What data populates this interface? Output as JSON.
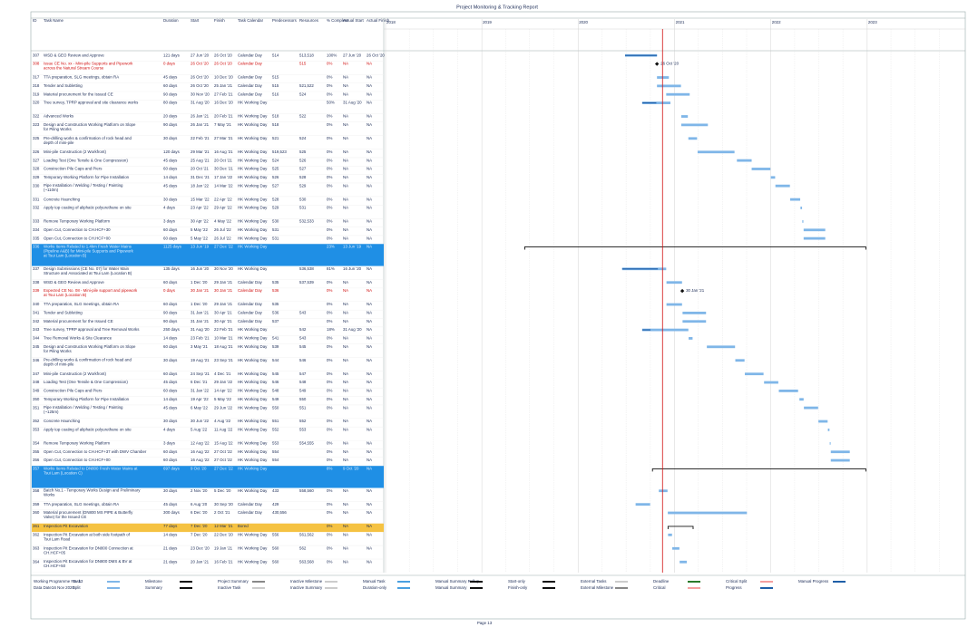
{
  "header": {
    "title": "Project Monitoring & Tracking Report"
  },
  "columns": [
    "ID",
    "Task Name",
    "Duration",
    "Start",
    "Finish",
    "Task Calendar",
    "Predecessors",
    "Resources",
    "% Complete",
    "Actual Start",
    "Actual Finish"
  ],
  "timeline": {
    "years": [
      "2018",
      "2019",
      "2020",
      "2021",
      "2022",
      "2023"
    ]
  },
  "rows": [
    {
      "id": "307",
      "name": "WSD & GEO Review and Approve",
      "duration": "121 days",
      "start": "27 Jun '20",
      "finish": "26 Oct '20",
      "calendar": "Calendar Day",
      "pred": "514",
      "res": "513,518",
      "pct": "100%",
      "astart": "27 Jun '20",
      "afinish": "26 Oct '20"
    },
    {
      "id": "308",
      "name": "Issue CE No. xx - Mini-pile Supports and Pipework across the Natural Stream Course",
      "duration": "0 days",
      "start": "26 Oct '20",
      "finish": "26 Oct '20",
      "calendar": "Calendar Day",
      "pred": "",
      "res": "515",
      "pct": "0%",
      "astart": "NA",
      "afinish": "NA",
      "text_color": "#d01010",
      "milestone": true
    },
    {
      "id": "317",
      "name": "TTA preparation, SLG meetings, obtain RA",
      "duration": "45 days",
      "start": "26 Oct '20",
      "finish": "10 Dec '20",
      "calendar": "Calendar Day",
      "pred": "515",
      "res": "",
      "pct": "0%",
      "astart": "NA",
      "afinish": "NA"
    },
    {
      "id": "318",
      "name": "Tender and Subletting",
      "duration": "60 days",
      "start": "26 Oct '20",
      "finish": "25 Jan '21",
      "calendar": "Calendar Day",
      "pred": "515",
      "res": "521,522",
      "pct": "0%",
      "astart": "NA",
      "afinish": "NA"
    },
    {
      "id": "319",
      "name": "Material procurement for the Issued CE",
      "duration": "90 days",
      "start": "30 Nov '20",
      "finish": "27 Feb '21",
      "calendar": "Calendar Day",
      "pred": "516",
      "res": "524",
      "pct": "0%",
      "astart": "NA",
      "afinish": "NA"
    },
    {
      "id": "320",
      "name": "Tree survey, TPRP approval and site clearance works",
      "duration": "80 days",
      "start": "31 Aug '20",
      "finish": "16 Dec '20",
      "calendar": "HK Working Day",
      "pred": "",
      "res": "",
      "pct": "50%",
      "astart": "31 Aug '20",
      "afinish": "NA"
    },
    {
      "id": "322",
      "name": "Advanced Works",
      "duration": "20 days",
      "start": "26 Jan '21",
      "finish": "20 Feb '21",
      "calendar": "HK Working Day",
      "pred": "518",
      "res": "522",
      "pct": "0%",
      "astart": "NA",
      "afinish": "NA"
    },
    {
      "id": "323",
      "name": "Design and Construction Working Platform on Slope for Piling Works",
      "duration": "90 days",
      "start": "26 Jan '21",
      "finish": "7 May '21",
      "calendar": "HK Working Day",
      "pred": "518",
      "res": "",
      "pct": "0%",
      "astart": "NA",
      "afinish": "NA"
    },
    {
      "id": "325",
      "name": "Pre-drilling works & confirmation of rock head and depth of mini-pile",
      "duration": "30 days",
      "start": "22 Feb '21",
      "finish": "27 Mar '21",
      "calendar": "HK Working Day",
      "pred": "521",
      "res": "524",
      "pct": "0%",
      "astart": "NA",
      "afinish": "NA"
    },
    {
      "id": "326",
      "name": "Mini-pile Construction (2 Workfront)",
      "duration": "120 days",
      "start": "29 Mar '21",
      "finish": "16 Aug '21",
      "calendar": "HK Working Day",
      "pred": "519,523",
      "res": "525",
      "pct": "0%",
      "astart": "NA",
      "afinish": "NA"
    },
    {
      "id": "327",
      "name": "Loading Test (One Tensile & One Compression)",
      "duration": "45 days",
      "start": "25 Aug '21",
      "finish": "20 Oct '21",
      "calendar": "HK Working Day",
      "pred": "524",
      "res": "526",
      "pct": "0%",
      "astart": "NA",
      "afinish": "NA"
    },
    {
      "id": "328",
      "name": "Construction Pile Caps and Piers",
      "duration": "60 days",
      "start": "20 Oct '21",
      "finish": "30 Dec '21",
      "calendar": "HK Working Day",
      "pred": "525",
      "res": "527",
      "pct": "0%",
      "astart": "NA",
      "afinish": "NA"
    },
    {
      "id": "329",
      "name": "Temporary Working Platform for Pipe Installation",
      "duration": "14 days",
      "start": "31 Dec '21",
      "finish": "17 Jan '22",
      "calendar": "HK Working Day",
      "pred": "526",
      "res": "528",
      "pct": "0%",
      "astart": "NA",
      "afinish": "NA"
    },
    {
      "id": "330",
      "name": "Pipe Installation / Welding / Testing / Painting (~110m)",
      "duration": "45 days",
      "start": "18 Jan '22",
      "finish": "14 Mar '22",
      "calendar": "HK Working Day",
      "pred": "527",
      "res": "529",
      "pct": "0%",
      "astart": "NA",
      "afinish": "NA"
    },
    {
      "id": "331",
      "name": "Concrete Haunching",
      "duration": "30 days",
      "start": "15 Mar '22",
      "finish": "22 Apr '22",
      "calendar": "HK Working Day",
      "pred": "528",
      "res": "530",
      "pct": "0%",
      "astart": "NA",
      "afinish": "NA"
    },
    {
      "id": "332",
      "name": "Apply top coating of aliphatic polyurethane on site",
      "duration": "4 days",
      "start": "23 Apr '22",
      "finish": "29 Apr '22",
      "calendar": "HK Working Day",
      "pred": "529",
      "res": "531",
      "pct": "0%",
      "astart": "NA",
      "afinish": "NA"
    },
    {
      "id": "333",
      "name": "Remove Temporary Working Platform",
      "duration": "3 days",
      "start": "30 Apr '22",
      "finish": "4 May '22",
      "calendar": "HK Working Day",
      "pred": "530",
      "res": "532,533",
      "pct": "0%",
      "astart": "NA",
      "afinish": "NA"
    },
    {
      "id": "334",
      "name": "Open Cut, Connection to CH.HCF+30",
      "duration": "60 days",
      "start": "5 May '22",
      "finish": "26 Jul '22",
      "calendar": "HK Working Day",
      "pred": "531",
      "res": "",
      "pct": "0%",
      "astart": "NA",
      "afinish": "NA"
    },
    {
      "id": "335",
      "name": "Open Cut, Connection to CH.HCF+00",
      "duration": "60 days",
      "start": "5 May '22",
      "finish": "26 Jul '22",
      "calendar": "HK Working Day",
      "pred": "531",
      "res": "",
      "pct": "0%",
      "astart": "NA",
      "afinish": "NA"
    },
    {
      "id": "336",
      "name": "Works Items Related to 1.4km Fresh Water Mains (Pipeline A&B) for Mini-pile Supports and Pipework at Tsui Lam (Location B)",
      "duration": "1125 days",
      "start": "13 Jun '19",
      "finish": "27 Dec '22",
      "calendar": "HK Working Day",
      "pred": "",
      "res": "",
      "pct": "23%",
      "astart": "13 Jun '19",
      "afinish": "NA",
      "highlight": "#1f8fe5",
      "summary": true
    },
    {
      "id": "337",
      "name": "Design Submissions (CE No. 07) for Water Main Structure and Associated at Tsui Lam (Location B)",
      "duration": "135 days",
      "start": "16 Jun '20",
      "finish": "30 Nov '20",
      "calendar": "HK Working Day",
      "pred": "",
      "res": "536,538",
      "pct": "81%",
      "astart": "16 Jun '20",
      "afinish": "NA"
    },
    {
      "id": "338",
      "name": "WSD & GEO Review and Approve",
      "duration": "60 days",
      "start": "1 Dec '20",
      "finish": "29 Jan '21",
      "calendar": "Calendar Day",
      "pred": "535",
      "res": "537,539",
      "pct": "0%",
      "astart": "NA",
      "afinish": "NA"
    },
    {
      "id": "339",
      "name": "Expected CE No. 08 - Mini-pile support and pipework at Tsui Lam (Location B)",
      "duration": "0 days",
      "start": "30 Jan '21",
      "finish": "30 Jan '21",
      "calendar": "Calendar Day",
      "pred": "536",
      "res": "",
      "pct": "0%",
      "astart": "NA",
      "afinish": "NA",
      "text_color": "#d01010",
      "milestone": true
    },
    {
      "id": "340",
      "name": "TTA preparation, SLG meetings, obtain RA",
      "duration": "60 days",
      "start": "1 Dec '20",
      "finish": "29 Jan '21",
      "calendar": "Calendar Day",
      "pred": "535",
      "res": "",
      "pct": "0%",
      "astart": "NA",
      "afinish": "NA"
    },
    {
      "id": "341",
      "name": "Tender and Subletting",
      "duration": "90 days",
      "start": "31 Jan '21",
      "finish": "30 Apr '21",
      "calendar": "Calendar Day",
      "pred": "536",
      "res": "543",
      "pct": "0%",
      "astart": "NA",
      "afinish": "NA"
    },
    {
      "id": "342",
      "name": "Material procurement for the Issued CE",
      "duration": "90 days",
      "start": "31 Jan '21",
      "finish": "30 Apr '21",
      "calendar": "Calendar Day",
      "pred": "537",
      "res": "",
      "pct": "0%",
      "astart": "NA",
      "afinish": "NA"
    },
    {
      "id": "343",
      "name": "Tree survey, TPRP approval and Tree Removal Works",
      "duration": "250 days",
      "start": "31 Aug '20",
      "finish": "22 Feb '21",
      "calendar": "HK Working Day",
      "pred": "",
      "res": "542",
      "pct": "18%",
      "astart": "31 Aug '20",
      "afinish": "NA"
    },
    {
      "id": "344",
      "name": "Tree Removal Works & Site Clearance",
      "duration": "14 days",
      "start": "23 Feb '21",
      "finish": "10 Mar '21",
      "calendar": "HK Working Day",
      "pred": "541",
      "res": "543",
      "pct": "0%",
      "astart": "NA",
      "afinish": "NA"
    },
    {
      "id": "345",
      "name": "Design and Construction Working Platform on Slope for Piling Works",
      "duration": "60 days",
      "start": "3 May '21",
      "finish": "18 Aug '21",
      "calendar": "HK Working Day",
      "pred": "539",
      "res": "545",
      "pct": "0%",
      "astart": "NA",
      "afinish": "NA"
    },
    {
      "id": "346",
      "name": "Pre-drilling works & confirmation of rock head and depth of mini-pile",
      "duration": "30 days",
      "start": "19 Aug '21",
      "finish": "23 Sep '21",
      "calendar": "HK Working Day",
      "pred": "544",
      "res": "546",
      "pct": "0%",
      "astart": "NA",
      "afinish": "NA"
    },
    {
      "id": "347",
      "name": "Mini-pile Construction (2 Workfront)",
      "duration": "60 days",
      "start": "24 Sep '21",
      "finish": "4 Dec '21",
      "calendar": "HK Working Day",
      "pred": "545",
      "res": "547",
      "pct": "0%",
      "astart": "NA",
      "afinish": "NA"
    },
    {
      "id": "348",
      "name": "Loading Test (One Tensile & One Compression)",
      "duration": "45 days",
      "start": "6 Dec '21",
      "finish": "29 Jan '22",
      "calendar": "HK Working Day",
      "pred": "546",
      "res": "548",
      "pct": "0%",
      "astart": "NA",
      "afinish": "NA"
    },
    {
      "id": "349",
      "name": "Construction Pile Caps and Piers",
      "duration": "60 days",
      "start": "31 Jan '22",
      "finish": "14 Apr '22",
      "calendar": "HK Working Day",
      "pred": "548",
      "res": "549",
      "pct": "0%",
      "astart": "NA",
      "afinish": "NA"
    },
    {
      "id": "350",
      "name": "Temporary Working Platform for Pipe Installation",
      "duration": "14 days",
      "start": "19 Apr '22",
      "finish": "5 May '22",
      "calendar": "HK Working Day",
      "pred": "549",
      "res": "550",
      "pct": "0%",
      "astart": "NA",
      "afinish": "NA"
    },
    {
      "id": "351",
      "name": "Pipe Installation / Welding / Testing / Painting (~125m)",
      "duration": "45 days",
      "start": "6 May '22",
      "finish": "29 Jun '22",
      "calendar": "HK Working Day",
      "pred": "550",
      "res": "551",
      "pct": "0%",
      "astart": "NA",
      "afinish": "NA"
    },
    {
      "id": "352",
      "name": "Concrete Haunching",
      "duration": "30 days",
      "start": "30 Jun '22",
      "finish": "4 Aug '22",
      "calendar": "HK Working Day",
      "pred": "551",
      "res": "552",
      "pct": "0%",
      "astart": "NA",
      "afinish": "NA"
    },
    {
      "id": "353",
      "name": "Apply top coating of aliphatic polyurethane on site",
      "duration": "4 days",
      "start": "5 Aug '22",
      "finish": "11 Aug '22",
      "calendar": "HK Working Day",
      "pred": "552",
      "res": "553",
      "pct": "0%",
      "astart": "NA",
      "afinish": "NA"
    },
    {
      "id": "354",
      "name": "Remove Temporary Working Platform",
      "duration": "3 days",
      "start": "12 Aug '22",
      "finish": "15 Aug '22",
      "calendar": "HK Working Day",
      "pred": "553",
      "res": "554,555",
      "pct": "0%",
      "astart": "NA",
      "afinish": "NA"
    },
    {
      "id": "355",
      "name": "Open Cut, Connection to CH.HCF+37 with DWV Chamber",
      "duration": "60 days",
      "start": "16 Aug '22",
      "finish": "27 Oct '22",
      "calendar": "HK Working Day",
      "pred": "554",
      "res": "",
      "pct": "0%",
      "astart": "NA",
      "afinish": "NA"
    },
    {
      "id": "356",
      "name": "Open Cut, Connection to CH.HCF+00",
      "duration": "60 days",
      "start": "16 Aug '22",
      "finish": "27 Oct '22",
      "calendar": "HK Working Day",
      "pred": "554",
      "res": "",
      "pct": "0%",
      "astart": "NA",
      "afinish": "NA"
    },
    {
      "id": "357",
      "name": "Works Items Related to DN800 Fresh Water Mains at Tsui Lam (Location C)",
      "duration": "697 days",
      "start": "9 Oct '20",
      "finish": "27 Dec '22",
      "calendar": "HK Working Day",
      "pred": "",
      "res": "",
      "pct": "8%",
      "astart": "9 Oct '20",
      "afinish": "NA",
      "highlight": "#1f8fe5",
      "summary": true
    },
    {
      "id": "358",
      "name": "Batch No.1 - Temporary Works Design and Preliminary Works",
      "duration": "30 days",
      "start": "2 Nov '20",
      "finish": "5 Dec '20",
      "calendar": "HK Working Day",
      "pred": "433",
      "res": "558,560",
      "pct": "0%",
      "astart": "NA",
      "afinish": "NA"
    },
    {
      "id": "359",
      "name": "TTA preparation, SLG meetings, obtain RA",
      "duration": "45 days",
      "start": "6 Aug '20",
      "finish": "30 Sep '20",
      "calendar": "Calendar Day",
      "pred": "429",
      "res": "",
      "pct": "0%",
      "astart": "NA",
      "afinish": "NA"
    },
    {
      "id": "360",
      "name": "Material procurement (DN800 MS PIPE & Butterfly Valve) for the Issued CE",
      "duration": "300 days",
      "start": "6 Dec '20",
      "finish": "2 Oct '21",
      "calendar": "Calendar Day",
      "pred": "430,556",
      "res": "",
      "pct": "0%",
      "astart": "NA",
      "afinish": "NA"
    },
    {
      "id": "361",
      "name": "Inspection Pit Excavation",
      "duration": "77 days",
      "start": "7 Dec '20",
      "finish": "12 Mar '21",
      "calendar": "Bored",
      "pred": "",
      "res": "",
      "pct": "0%",
      "astart": "NA",
      "afinish": "NA",
      "highlight": "#f5c242",
      "summary": true
    },
    {
      "id": "362",
      "name": "Inspection Pit Excavation at both side footpath of Tsui Lam Road",
      "duration": "14 days",
      "start": "7 Dec '20",
      "finish": "22 Dec '20",
      "calendar": "HK Working Day",
      "pred": "556",
      "res": "561,562",
      "pct": "0%",
      "astart": "NA",
      "afinish": "NA"
    },
    {
      "id": "363",
      "name": "Inspection Pit Excavation for DN800 Connection at CH.HCF+05",
      "duration": "21 days",
      "start": "23 Dec '20",
      "finish": "19 Jan '21",
      "calendar": "HK Working Day",
      "pred": "560",
      "res": "562",
      "pct": "0%",
      "astart": "NA",
      "afinish": "NA"
    },
    {
      "id": "364",
      "name": "Inspection Pit Excavation for DN800 DMS & BV at CH.HCF+50",
      "duration": "21 days",
      "start": "20 Jan '21",
      "finish": "16 Feb '21",
      "calendar": "HK Working Day",
      "pred": "560",
      "res": "563,568",
      "pct": "0%",
      "astart": "NA",
      "afinish": "NA"
    }
  ],
  "footer": {
    "programme": "Working Programme No. 13",
    "data_date_label": "Data Date:",
    "data_date": "16 Nov 2020",
    "legend": [
      "Task",
      "Split",
      "Milestone",
      "Summary",
      "Project Summary",
      "Inactive Task",
      "Inactive Milestone",
      "Inactive Summary",
      "Manual Task",
      "Duration-only",
      "Manual Summary Rollup",
      "Manual Summary",
      "Start-only",
      "Finish-only",
      "External Tasks",
      "External Milestone",
      "Deadline",
      "Critical",
      "Critical Split",
      "Progress",
      "Manual Progress"
    ],
    "page": "Page 13"
  }
}
